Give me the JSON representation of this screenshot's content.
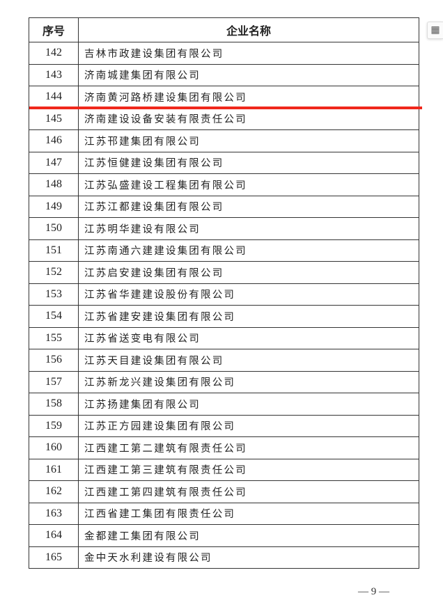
{
  "table": {
    "headers": {
      "index": "序号",
      "name": "企业名称"
    },
    "rows": [
      {
        "index": "142",
        "name": "吉林市政建设集团有限公司"
      },
      {
        "index": "143",
        "name": "济南城建集团有限公司"
      },
      {
        "index": "144",
        "name": "济南黄河路桥建设集团有限公司"
      },
      {
        "index": "145",
        "name": "济南建设设备安装有限责任公司"
      },
      {
        "index": "146",
        "name": "江苏邗建集团有限公司"
      },
      {
        "index": "147",
        "name": "江苏恒健建设集团有限公司"
      },
      {
        "index": "148",
        "name": "江苏弘盛建设工程集团有限公司"
      },
      {
        "index": "149",
        "name": "江苏江都建设集团有限公司"
      },
      {
        "index": "150",
        "name": "江苏明华建设有限公司"
      },
      {
        "index": "151",
        "name": "江苏南通六建建设集团有限公司"
      },
      {
        "index": "152",
        "name": "江苏启安建设集团有限公司"
      },
      {
        "index": "153",
        "name": "江苏省华建建设股份有限公司"
      },
      {
        "index": "154",
        "name": "江苏省建安建设集团有限公司"
      },
      {
        "index": "155",
        "name": "江苏省送变电有限公司"
      },
      {
        "index": "156",
        "name": "江苏天目建设集团有限公司"
      },
      {
        "index": "157",
        "name": "江苏新龙兴建设集团有限公司"
      },
      {
        "index": "158",
        "name": "江苏扬建集团有限公司"
      },
      {
        "index": "159",
        "name": "江苏正方园建设集团有限公司"
      },
      {
        "index": "160",
        "name": "江西建工第二建筑有限责任公司"
      },
      {
        "index": "161",
        "name": "江西建工第三建筑有限责任公司"
      },
      {
        "index": "162",
        "name": "江西建工第四建筑有限责任公司"
      },
      {
        "index": "163",
        "name": "江西省建工集团有限责任公司"
      },
      {
        "index": "164",
        "name": "金都建工集团有限公司"
      },
      {
        "index": "165",
        "name": "金中天水利建设有限公司"
      }
    ]
  },
  "annotation": {
    "color": "#f0281c"
  },
  "footer": {
    "page": "— 9 —"
  },
  "side_icon": {
    "icon": "table-view-icon",
    "glyph": "▦"
  }
}
